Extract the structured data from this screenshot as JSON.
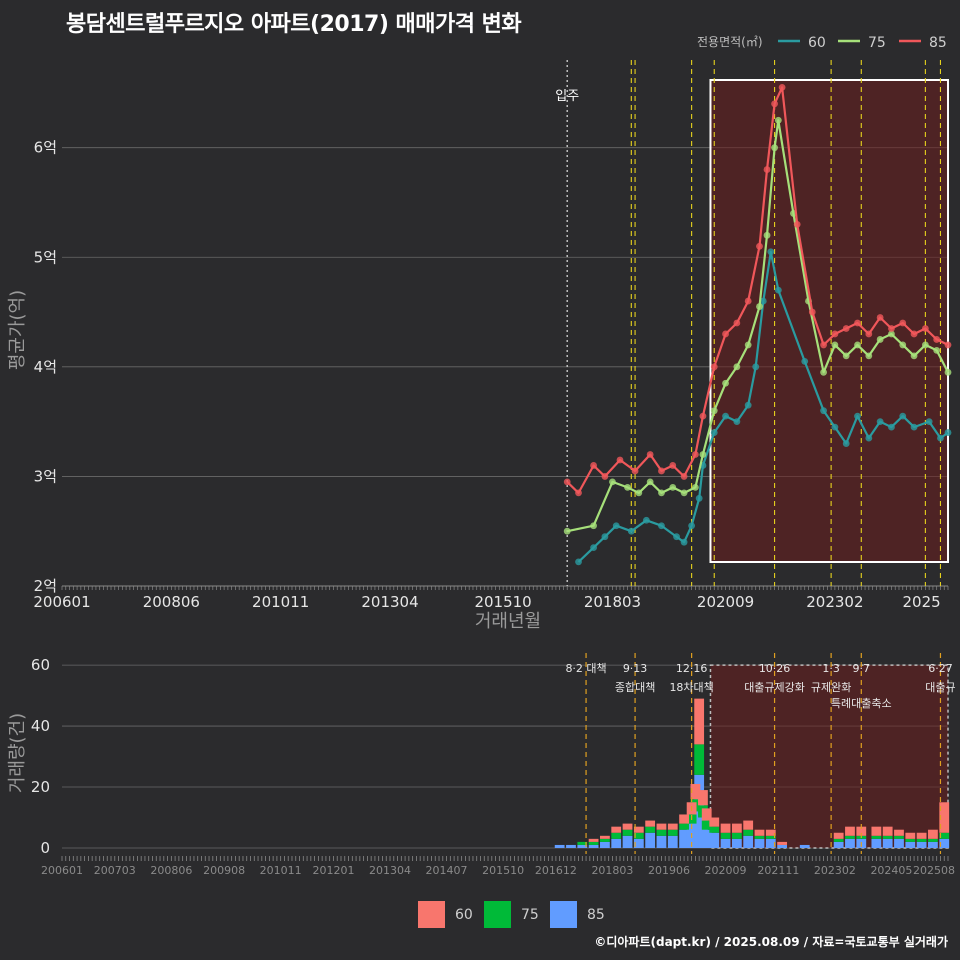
{
  "title": "봉담센트럴푸르지오 아파트(2017) 매매가격 변화",
  "footer": "©디아파트(dapt.kr) / 2025.08.09 / 자료=국토교통부 실거래가",
  "colors": {
    "s60": "#2a9ba0",
    "s75": "#a6e07a",
    "s85": "#f0575a",
    "b60": "#f8766d",
    "b75": "#00ba38",
    "b85": "#619cff",
    "event": "#e6d21e",
    "band": "#6b1d1d"
  },
  "top_legend": {
    "title": "전용면적(㎡)",
    "items": [
      "60",
      "75",
      "85"
    ]
  },
  "bottom_legend": {
    "items": [
      "60",
      "75",
      "85"
    ]
  },
  "move_in_label": "입주",
  "events_top": [
    "2018-08",
    "2018-09",
    "2019-12",
    "2020-06",
    "2021-10",
    "2023-01",
    "2023-09",
    "2025-02",
    "2025-06"
  ],
  "events_bottom": [
    {
      "date": "2017-08",
      "label1": "8·2 대책",
      "label2": ""
    },
    {
      "date": "2018-09",
      "label1": "9·13",
      "label2": "종합대책"
    },
    {
      "date": "2019-12",
      "label1": "12·16",
      "label2": "18차대책"
    },
    {
      "date": "2021-10",
      "label1": "10·26",
      "label2": "대출규제강화"
    },
    {
      "date": "2023-01",
      "label1": "1·3",
      "label2": "규제완화"
    },
    {
      "date": "2023-09",
      "label1": "9·7",
      "label2": "특례대출축소"
    },
    {
      "date": "2025-06",
      "label1": "6·27",
      "label2": "대출규"
    }
  ],
  "chart_data": [
    {
      "type": "line",
      "title": "봉담센트럴푸르지오 아파트(2017) 매매가격 변화",
      "xlabel": "거래년월",
      "ylabel": "평균가(억)",
      "x_ticks": [
        "200601",
        "200806",
        "201011",
        "201304",
        "201510",
        "201803",
        "202009",
        "202302",
        "2025"
      ],
      "y_ticks": [
        "2억",
        "3억",
        "4억",
        "5억",
        "6억"
      ],
      "ylim": [
        2.0,
        6.8
      ],
      "xlim": [
        "2006-01",
        "2025-08"
      ],
      "move_in": "2017-03",
      "highlight_range": [
        "2020-05",
        "2025-08"
      ],
      "series": [
        {
          "name": "60",
          "points": [
            [
              "2017-06",
              2.22
            ],
            [
              "2017-10",
              2.35
            ],
            [
              "2018-01",
              2.45
            ],
            [
              "2018-04",
              2.55
            ],
            [
              "2018-08",
              2.5
            ],
            [
              "2018-12",
              2.6
            ],
            [
              "2019-04",
              2.55
            ],
            [
              "2019-08",
              2.45
            ],
            [
              "2019-10",
              2.4
            ],
            [
              "2019-12",
              2.55
            ],
            [
              "2020-02",
              2.8
            ],
            [
              "2020-03",
              3.1
            ],
            [
              "2020-06",
              3.4
            ],
            [
              "2020-09",
              3.55
            ],
            [
              "2020-12",
              3.5
            ],
            [
              "2021-03",
              3.65
            ],
            [
              "2021-05",
              4.0
            ],
            [
              "2021-07",
              4.6
            ],
            [
              "2021-09",
              5.05
            ],
            [
              "2021-11",
              4.7
            ],
            [
              "2022-06",
              4.05
            ],
            [
              "2022-11",
              3.6
            ],
            [
              "2023-02",
              3.45
            ],
            [
              "2023-05",
              3.3
            ],
            [
              "2023-08",
              3.55
            ],
            [
              "2023-11",
              3.35
            ],
            [
              "2024-02",
              3.5
            ],
            [
              "2024-05",
              3.45
            ],
            [
              "2024-08",
              3.55
            ],
            [
              "2024-11",
              3.45
            ],
            [
              "2025-03",
              3.5
            ],
            [
              "2025-06",
              3.35
            ],
            [
              "2025-08",
              3.4
            ]
          ]
        },
        {
          "name": "75",
          "points": [
            [
              "2017-03",
              2.5
            ],
            [
              "2017-10",
              2.55
            ],
            [
              "2018-03",
              2.95
            ],
            [
              "2018-07",
              2.9
            ],
            [
              "2018-10",
              2.85
            ],
            [
              "2019-01",
              2.95
            ],
            [
              "2019-04",
              2.85
            ],
            [
              "2019-07",
              2.9
            ],
            [
              "2019-10",
              2.85
            ],
            [
              "2020-01",
              2.9
            ],
            [
              "2020-03",
              3.2
            ],
            [
              "2020-06",
              3.6
            ],
            [
              "2020-09",
              3.85
            ],
            [
              "2020-12",
              4.0
            ],
            [
              "2021-03",
              4.2
            ],
            [
              "2021-06",
              4.55
            ],
            [
              "2021-08",
              5.2
            ],
            [
              "2021-10",
              6.0
            ],
            [
              "2021-11",
              6.25
            ],
            [
              "2022-03",
              5.4
            ],
            [
              "2022-07",
              4.6
            ],
            [
              "2022-11",
              3.95
            ],
            [
              "2023-02",
              4.2
            ],
            [
              "2023-05",
              4.1
            ],
            [
              "2023-08",
              4.2
            ],
            [
              "2023-11",
              4.1
            ],
            [
              "2024-02",
              4.25
            ],
            [
              "2024-05",
              4.3
            ],
            [
              "2024-08",
              4.2
            ],
            [
              "2024-11",
              4.1
            ],
            [
              "2025-02",
              4.2
            ],
            [
              "2025-05",
              4.15
            ],
            [
              "2025-08",
              3.95
            ]
          ]
        },
        {
          "name": "85",
          "points": [
            [
              "2017-03",
              2.95
            ],
            [
              "2017-06",
              2.85
            ],
            [
              "2017-10",
              3.1
            ],
            [
              "2018-01",
              3.0
            ],
            [
              "2018-05",
              3.15
            ],
            [
              "2018-09",
              3.05
            ],
            [
              "2019-01",
              3.2
            ],
            [
              "2019-04",
              3.05
            ],
            [
              "2019-07",
              3.1
            ],
            [
              "2019-10",
              3.0
            ],
            [
              "2020-01",
              3.2
            ],
            [
              "2020-03",
              3.55
            ],
            [
              "2020-06",
              4.0
            ],
            [
              "2020-09",
              4.3
            ],
            [
              "2020-12",
              4.4
            ],
            [
              "2021-03",
              4.6
            ],
            [
              "2021-06",
              5.1
            ],
            [
              "2021-08",
              5.8
            ],
            [
              "2021-10",
              6.4
            ],
            [
              "2021-12",
              6.55
            ],
            [
              "2022-04",
              5.3
            ],
            [
              "2022-08",
              4.5
            ],
            [
              "2022-11",
              4.2
            ],
            [
              "2023-02",
              4.3
            ],
            [
              "2023-05",
              4.35
            ],
            [
              "2023-08",
              4.4
            ],
            [
              "2023-11",
              4.3
            ],
            [
              "2024-02",
              4.45
            ],
            [
              "2024-05",
              4.35
            ],
            [
              "2024-08",
              4.4
            ],
            [
              "2024-11",
              4.3
            ],
            [
              "2025-02",
              4.35
            ],
            [
              "2025-05",
              4.25
            ],
            [
              "2025-08",
              4.2
            ]
          ]
        }
      ]
    },
    {
      "type": "bar",
      "xlabel": "",
      "ylabel": "거래량(건)",
      "y_ticks": [
        "0",
        "20",
        "40",
        "60"
      ],
      "ylim": [
        0,
        62
      ],
      "x_ticks": [
        "200601",
        "200703",
        "200806",
        "200908",
        "201011",
        "201201",
        "201304",
        "201407",
        "201510",
        "201612",
        "201803",
        "201906",
        "202009",
        "202111",
        "202302",
        "202405",
        "202508"
      ],
      "highlight_range": [
        "2020-05",
        "2025-08"
      ],
      "series": [
        {
          "name": "85",
          "points": [
            [
              "2017-01",
              1
            ],
            [
              "2017-04",
              1
            ],
            [
              "2017-07",
              1
            ],
            [
              "2017-10",
              1
            ],
            [
              "2018-01",
              2
            ],
            [
              "2018-04",
              3
            ],
            [
              "2018-07",
              4
            ],
            [
              "2018-10",
              3
            ],
            [
              "2019-01",
              5
            ],
            [
              "2019-04",
              4
            ],
            [
              "2019-07",
              4
            ],
            [
              "2019-10",
              6
            ],
            [
              "2019-12",
              8
            ],
            [
              "2020-01",
              12
            ],
            [
              "2020-02",
              24
            ],
            [
              "2020-03",
              10
            ],
            [
              "2020-04",
              6
            ],
            [
              "2020-06",
              5
            ],
            [
              "2020-09",
              3
            ],
            [
              "2020-12",
              3
            ],
            [
              "2021-03",
              4
            ],
            [
              "2021-06",
              3
            ],
            [
              "2021-09",
              3
            ],
            [
              "2021-12",
              1
            ],
            [
              "2022-06",
              1
            ],
            [
              "2023-03",
              2
            ],
            [
              "2023-06",
              3
            ],
            [
              "2023-09",
              3
            ],
            [
              "2024-01",
              3
            ],
            [
              "2024-04",
              3
            ],
            [
              "2024-07",
              3
            ],
            [
              "2024-10",
              2
            ],
            [
              "2025-01",
              2
            ],
            [
              "2025-04",
              2
            ],
            [
              "2025-07",
              3
            ]
          ]
        },
        {
          "name": "75",
          "points": [
            [
              "2017-01",
              0
            ],
            [
              "2017-04",
              0
            ],
            [
              "2017-07",
              1
            ],
            [
              "2017-10",
              1
            ],
            [
              "2018-01",
              1
            ],
            [
              "2018-04",
              2
            ],
            [
              "2018-07",
              2
            ],
            [
              "2018-10",
              2
            ],
            [
              "2019-01",
              2
            ],
            [
              "2019-04",
              2
            ],
            [
              "2019-07",
              2
            ],
            [
              "2019-10",
              2
            ],
            [
              "2019-12",
              3
            ],
            [
              "2020-01",
              4
            ],
            [
              "2020-02",
              10
            ],
            [
              "2020-03",
              4
            ],
            [
              "2020-04",
              3
            ],
            [
              "2020-06",
              2
            ],
            [
              "2020-09",
              2
            ],
            [
              "2020-12",
              2
            ],
            [
              "2021-03",
              2
            ],
            [
              "2021-06",
              1
            ],
            [
              "2021-09",
              1
            ],
            [
              "2021-12",
              0
            ],
            [
              "2022-06",
              0
            ],
            [
              "2023-03",
              1
            ],
            [
              "2023-06",
              1
            ],
            [
              "2023-09",
              1
            ],
            [
              "2024-01",
              1
            ],
            [
              "2024-04",
              1
            ],
            [
              "2024-07",
              1
            ],
            [
              "2024-10",
              1
            ],
            [
              "2025-01",
              1
            ],
            [
              "2025-04",
              1
            ],
            [
              "2025-07",
              2
            ]
          ]
        },
        {
          "name": "60",
          "points": [
            [
              "2017-01",
              0
            ],
            [
              "2017-04",
              0
            ],
            [
              "2017-07",
              0
            ],
            [
              "2017-10",
              1
            ],
            [
              "2018-01",
              1
            ],
            [
              "2018-04",
              2
            ],
            [
              "2018-07",
              2
            ],
            [
              "2018-10",
              2
            ],
            [
              "2019-01",
              2
            ],
            [
              "2019-04",
              2
            ],
            [
              "2019-07",
              2
            ],
            [
              "2019-10",
              3
            ],
            [
              "2019-12",
              4
            ],
            [
              "2020-01",
              5
            ],
            [
              "2020-02",
              15
            ],
            [
              "2020-03",
              5
            ],
            [
              "2020-04",
              4
            ],
            [
              "2020-06",
              3
            ],
            [
              "2020-09",
              3
            ],
            [
              "2020-12",
              3
            ],
            [
              "2021-03",
              3
            ],
            [
              "2021-06",
              2
            ],
            [
              "2021-09",
              2
            ],
            [
              "2021-12",
              1
            ],
            [
              "2022-06",
              0
            ],
            [
              "2023-03",
              2
            ],
            [
              "2023-06",
              3
            ],
            [
              "2023-09",
              3
            ],
            [
              "2024-01",
              3
            ],
            [
              "2024-04",
              3
            ],
            [
              "2024-07",
              2
            ],
            [
              "2024-10",
              2
            ],
            [
              "2025-01",
              2
            ],
            [
              "2025-04",
              3
            ],
            [
              "2025-07",
              10
            ]
          ]
        }
      ]
    }
  ]
}
